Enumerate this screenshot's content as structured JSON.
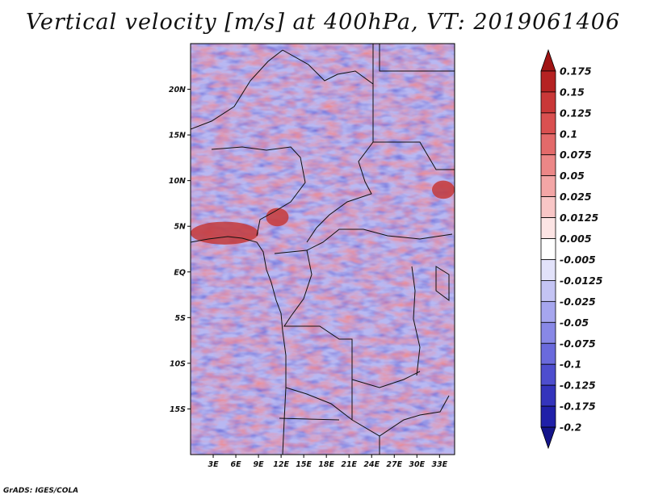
{
  "title": "Vertical velocity [m/s] at 400hPa, VT: 2019061406",
  "credit": "GrADS: IGES/COLA",
  "chart_data": {
    "type": "heatmap",
    "title": "Vertical velocity [m/s] at 400hPa, VT: 2019061406",
    "variable": "Vertical velocity",
    "units": "m/s",
    "level": "400hPa",
    "valid_time": "2019061406",
    "xlim": [
      0,
      35
    ],
    "ylim": [
      -20,
      25
    ],
    "x_ticks": [
      {
        "value": 3,
        "label": "3E"
      },
      {
        "value": 6,
        "label": "6E"
      },
      {
        "value": 9,
        "label": "9E"
      },
      {
        "value": 12,
        "label": "12E"
      },
      {
        "value": 15,
        "label": "15E"
      },
      {
        "value": 18,
        "label": "18E"
      },
      {
        "value": 21,
        "label": "21E"
      },
      {
        "value": 24,
        "label": "24E"
      },
      {
        "value": 27,
        "label": "27E"
      },
      {
        "value": 30,
        "label": "30E"
      },
      {
        "value": 33,
        "label": "33E"
      }
    ],
    "y_ticks": [
      {
        "value": 20,
        "label": "20N"
      },
      {
        "value": 15,
        "label": "15N"
      },
      {
        "value": 10,
        "label": "10N"
      },
      {
        "value": 5,
        "label": "5N"
      },
      {
        "value": 0,
        "label": "EQ"
      },
      {
        "value": -5,
        "label": "5S"
      },
      {
        "value": -10,
        "label": "10S"
      },
      {
        "value": -15,
        "label": "15S"
      }
    ],
    "colorbar": {
      "levels": [
        "0.175",
        "0.15",
        "0.125",
        "0.1",
        "0.075",
        "0.05",
        "0.025",
        "0.0125",
        "0.005",
        "-0.005",
        "-0.0125",
        "-0.025",
        "-0.05",
        "-0.075",
        "-0.1",
        "-0.125",
        "-0.175",
        "-0.2"
      ],
      "colors": [
        "#a01414",
        "#b52222",
        "#c93838",
        "#d95050",
        "#e36a6a",
        "#ec8787",
        "#f3a6a6",
        "#f8c6c6",
        "#fce4e4",
        "#ffffff",
        "#e2e2fa",
        "#c4c4f4",
        "#a6a6ee",
        "#8888e6",
        "#6a6adc",
        "#4e4ece",
        "#3434bc",
        "#2020a8",
        "#14148a"
      ]
    },
    "features": [
      {
        "name": "strong ascent (red) cluster",
        "lon": [
          0,
          9
        ],
        "lat": [
          3,
          5.5
        ]
      },
      {
        "name": "ascent cluster",
        "lon": [
          10,
          13
        ],
        "lat": [
          5,
          7
        ]
      },
      {
        "name": "ascent cluster",
        "lon": [
          32,
          35
        ],
        "lat": [
          8,
          10
        ]
      }
    ]
  }
}
